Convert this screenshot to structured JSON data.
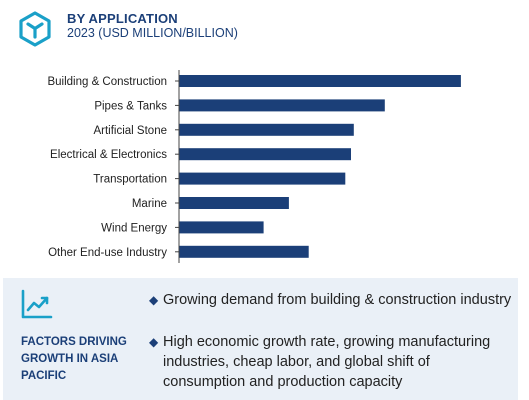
{
  "header": {
    "title": "BY APPLICATION",
    "subtitle": "2023 (USD MILLION/BILLION)",
    "icon": "cube-logo-icon"
  },
  "colors": {
    "bar": "#1b3f78",
    "accent": "#1aa0c8",
    "panel_bg": "#eaf0f7",
    "heading": "#1b3f78"
  },
  "chart_data": {
    "type": "bar",
    "orientation": "horizontal",
    "categories": [
      "Building & Construction",
      "Pipes & Tanks",
      "Artificial Stone",
      "Electrical & Electronics",
      "Transportation",
      "Marine",
      "Wind Energy",
      "Other End-use Industry"
    ],
    "values": [
      100,
      73,
      62,
      61,
      59,
      39,
      30,
      46
    ],
    "value_scale": "relative, no numeric axis shown",
    "xlim": [
      0,
      105
    ],
    "grid": false,
    "legend": "none"
  },
  "factors": {
    "icon": "growth-chart-icon",
    "title": "FACTORS DRIVING GROWTH IN ASIA PACIFIC",
    "bullet_icon": "diamond-bullet-icon",
    "items": [
      "Growing demand from building & construction industry",
      "High economic growth rate, growing manufacturing industries, cheap labor, and global shift of consumption and production capacity"
    ]
  }
}
